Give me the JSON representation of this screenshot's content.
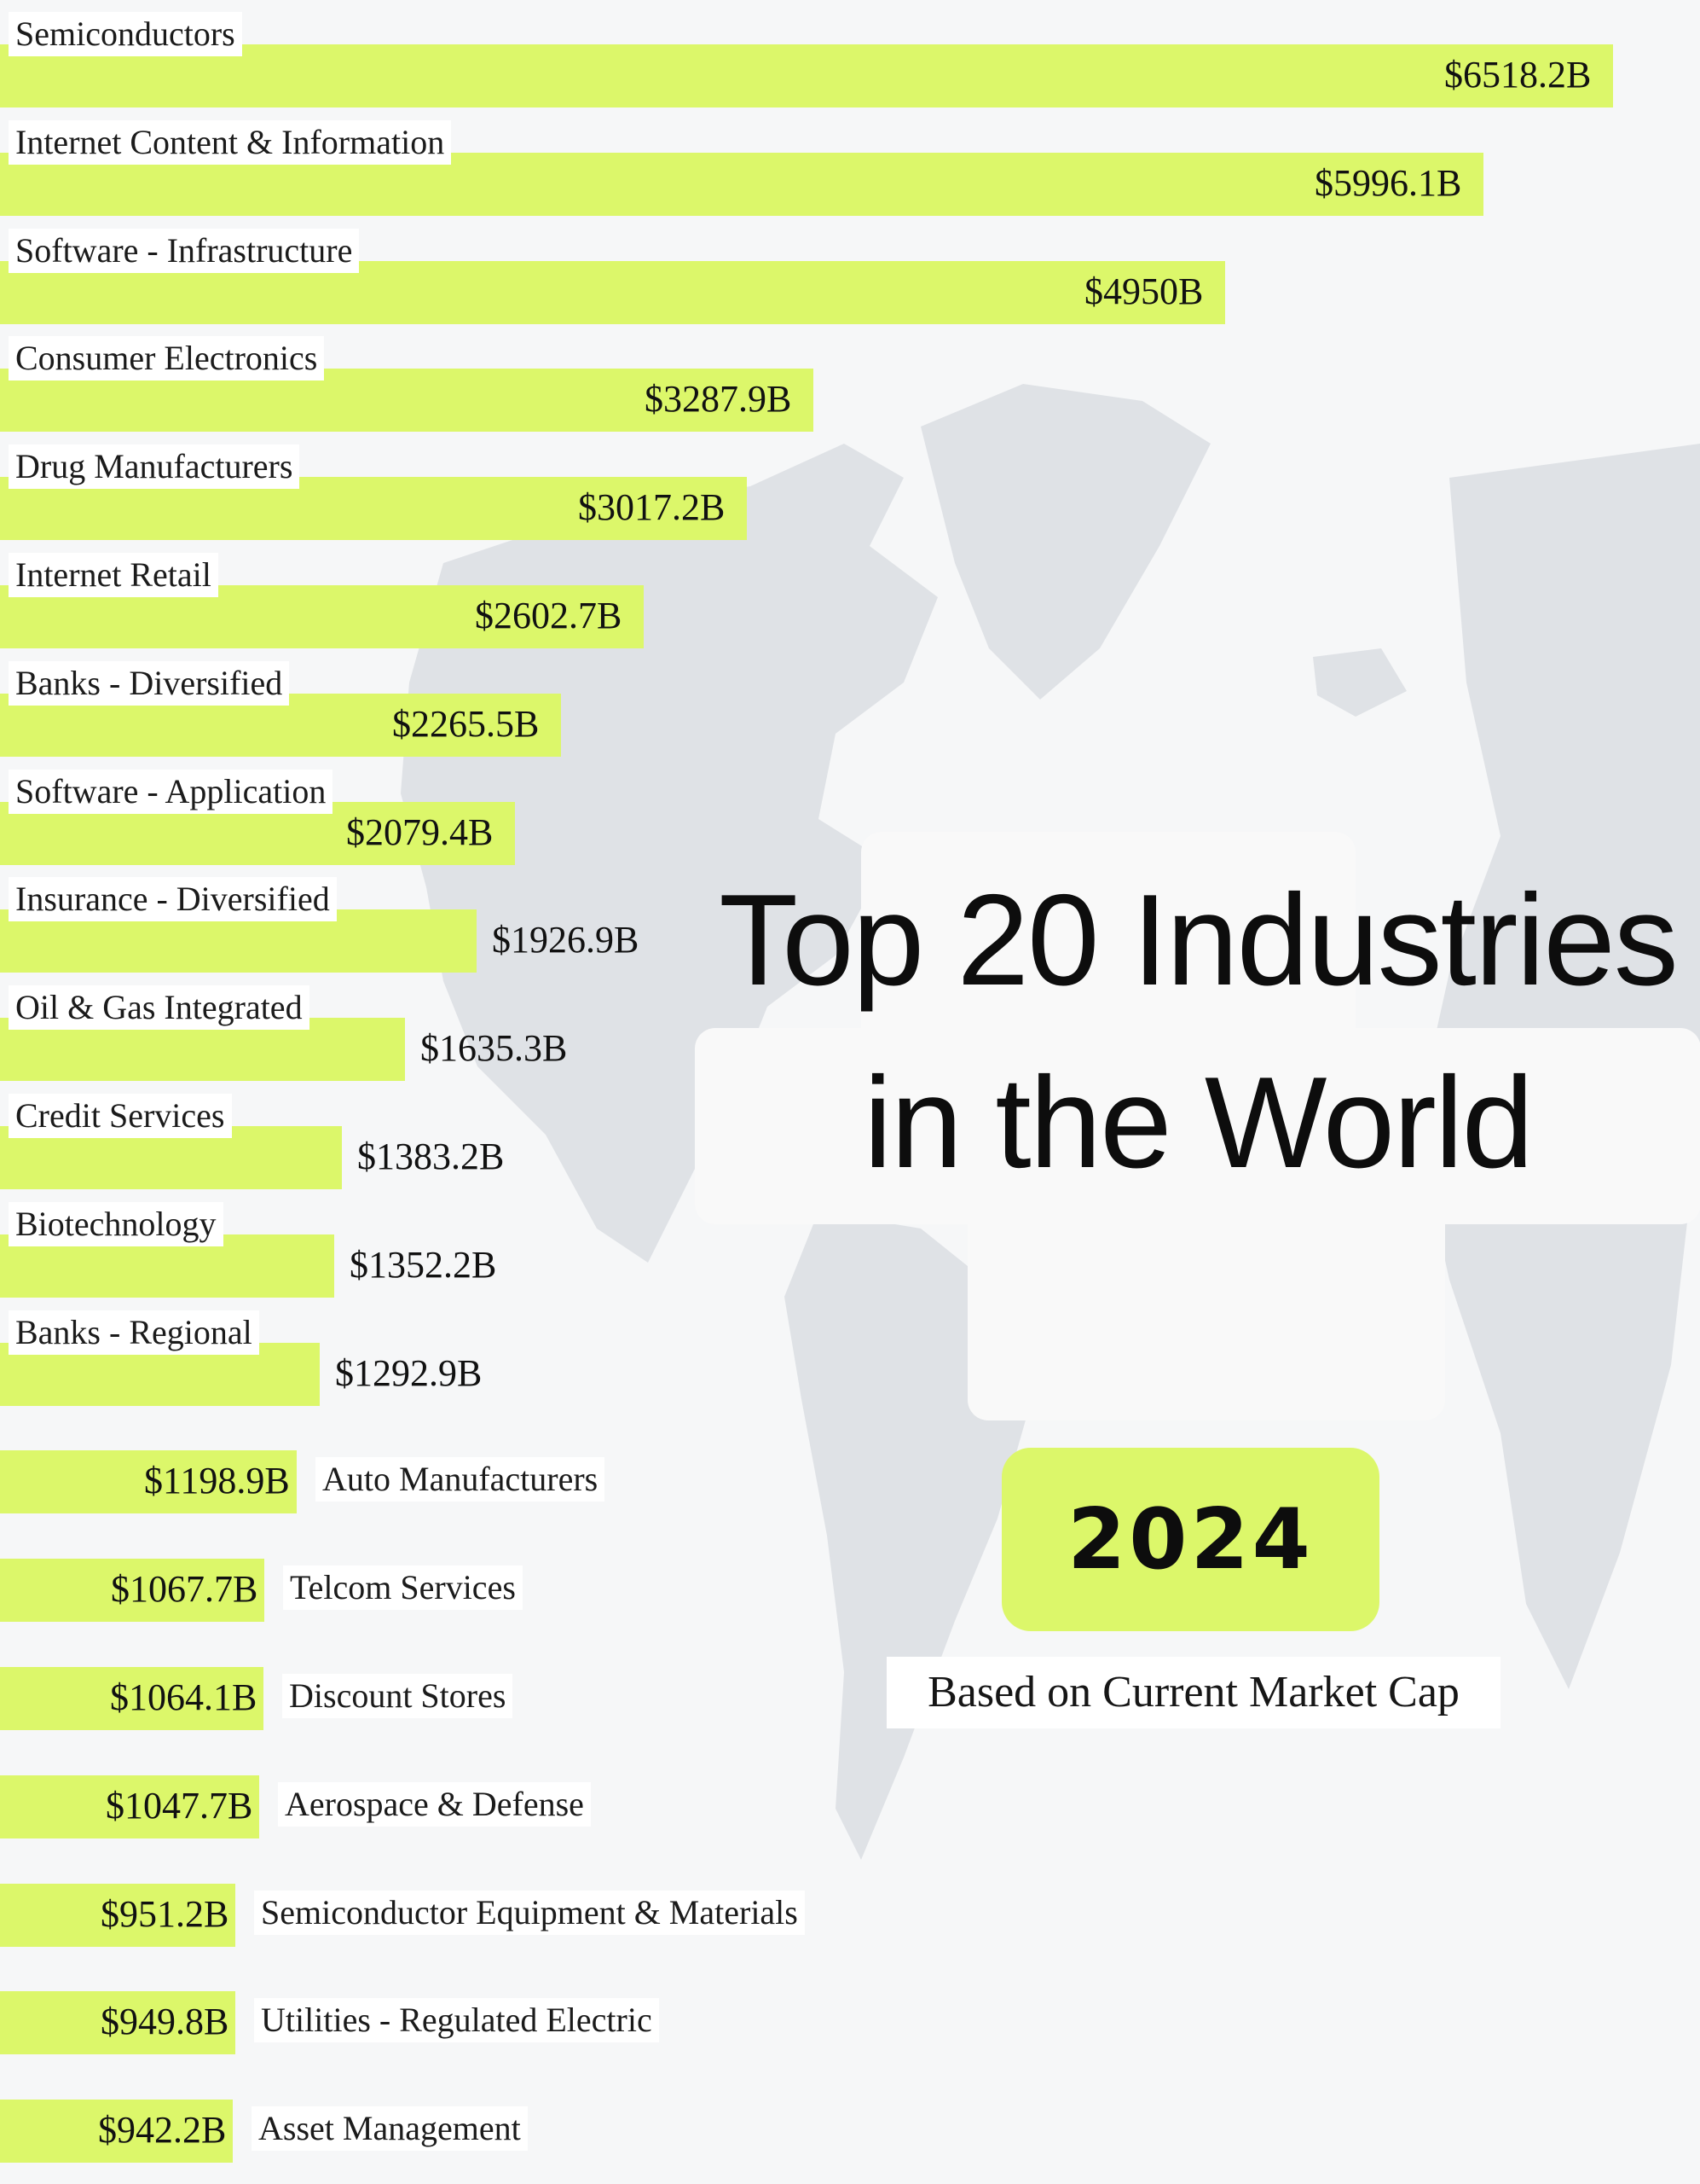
{
  "header": {
    "title": "Top 20 Industries in the World",
    "year_badge": "2024",
    "subtitle": "Based on Current Market Cap"
  },
  "colors": {
    "bar": "#dcf76a",
    "background": "#f6f7f8",
    "map": "#dfe2e6"
  },
  "chart_data": {
    "type": "bar",
    "orientation": "horizontal",
    "unit": "B",
    "categories": [
      "Semiconductors",
      "Internet Content & Information",
      "Software - Infrastructure",
      "Consumer Electronics",
      "Drug Manufacturers",
      "Internet Retail",
      "Banks - Diversified",
      "Software - Application",
      "Insurance - Diversified",
      "Oil & Gas Integrated",
      "Credit Services",
      "Biotechnology",
      "Banks - Regional",
      "Auto Manufacturers",
      "Telcom Services",
      "Discount Stores",
      "Aerospace & Defense",
      "Semiconductor Equipment & Materials",
      "Utilities - Regulated Electric",
      "Asset Management"
    ],
    "values": [
      6518.2,
      5996.1,
      4950,
      3287.9,
      3017.2,
      2602.7,
      2265.5,
      2079.4,
      1926.9,
      1635.3,
      1383.2,
      1352.2,
      1292.9,
      1198.9,
      1067.7,
      1064.1,
      1047.7,
      951.2,
      949.8,
      942.2
    ],
    "value_labels": [
      "$6518.2B",
      "$5996.1B",
      "$4950B",
      "$3287.9B",
      "$3017.2B",
      "$2602.7B",
      "$2265.5B",
      "$2079.4B",
      "$1926.9B",
      "$1635.3B",
      "$1383.2B",
      "$1352.2B",
      "$1292.9B",
      "$1198.9B",
      "$1067.7B",
      "$1064.1B",
      "$1047.7B",
      "$951.2B",
      "$949.8B",
      "$942.2B"
    ],
    "xlim": [
      0,
      6518.2
    ],
    "grid": false,
    "legend": "none"
  }
}
